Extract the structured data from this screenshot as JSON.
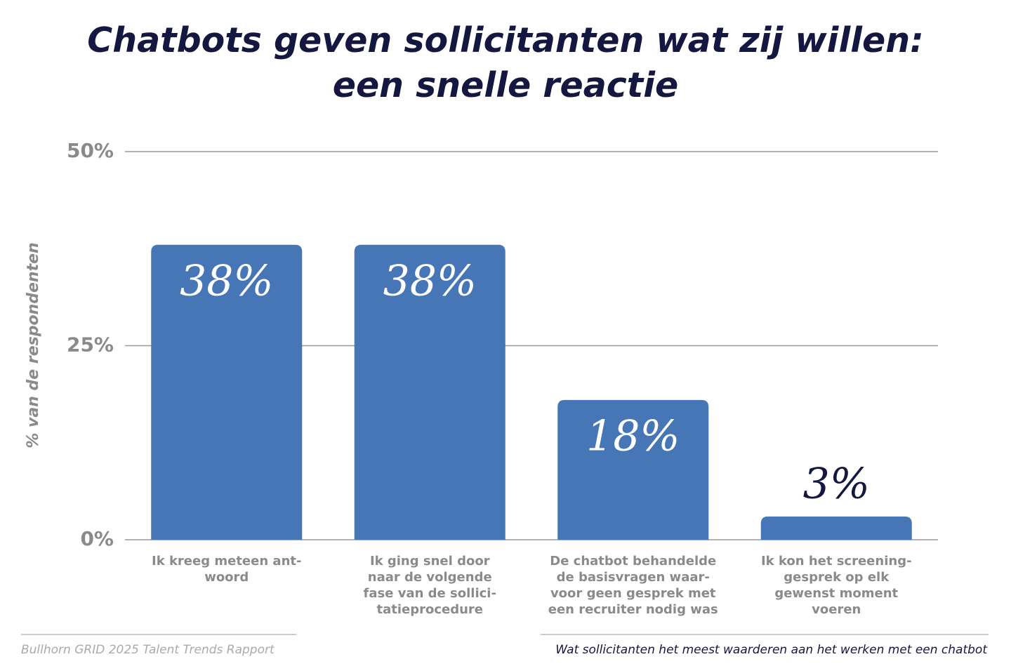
{
  "chart_data": {
    "type": "bar",
    "title": "Chatbots geven sollicitanten wat zij willen: een snelle reactie",
    "y_label": "% van de respondenten",
    "categories": [
      "Ik kreeg meteen ant-\nwoord",
      "Ik ging snel door\nnaar de volgende\nfase van de sollici-\ntatieprocedure",
      "De chatbot behandelde\nde basisvragen waar-\nvoor geen gesprek met\neen recruiter nodig was",
      "Ik kon het screening-\ngesprek op elk\ngewenst moment\nvoeren"
    ],
    "values": [
      38,
      38,
      18,
      3
    ],
    "value_labels": [
      "38%",
      "38%",
      "18%",
      "3%"
    ],
    "color": "#4676b6",
    "ylim": [
      0,
      50
    ],
    "yticks": [
      {
        "value": 0,
        "label": "0%"
      },
      {
        "value": 25,
        "label": "25%"
      },
      {
        "value": 50,
        "label": "50%"
      }
    ],
    "grid": true,
    "source": "Bullhorn GRID 2025 Talent Trends Rapport",
    "note": "Wat sollicitanten het meest waarderen aan het werken met een chatbot"
  }
}
